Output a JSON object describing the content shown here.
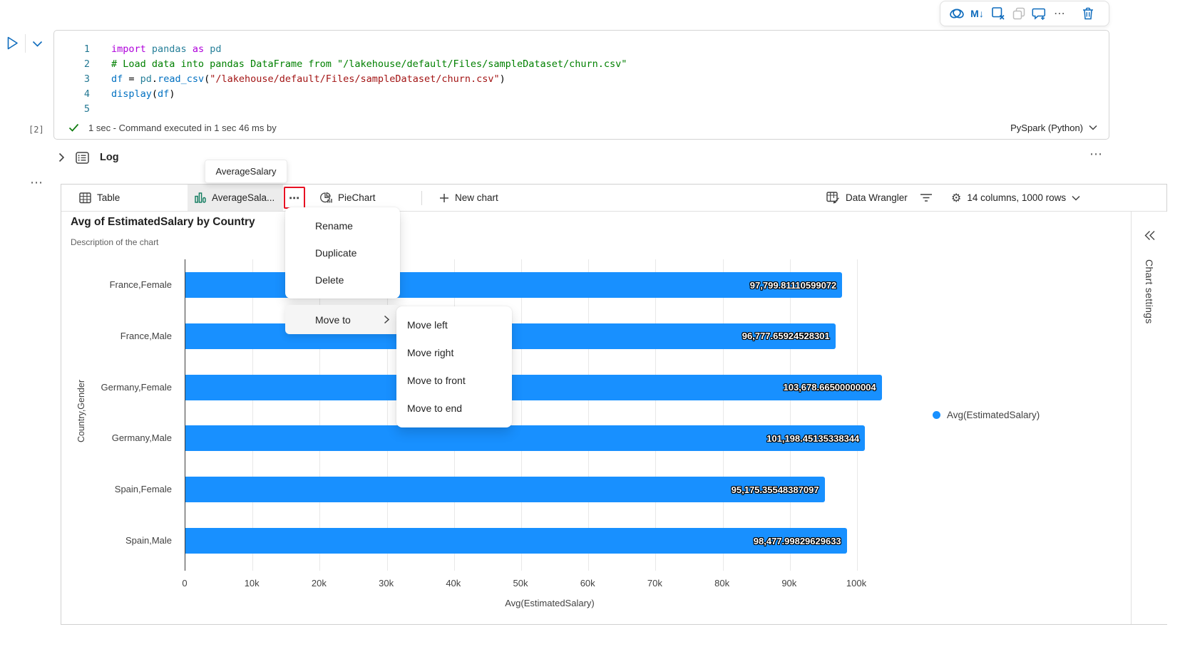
{
  "colors": {
    "accent_blue": "#0f6cbd",
    "bar_blue": "#1890ff",
    "icon_green": "#0e7a5d",
    "highlight_red": "#e81123"
  },
  "toolbar": {
    "markdown_glyph": "M↓",
    "more_glyph": "⋯"
  },
  "cell": {
    "execution_label": "[2]",
    "status_text": "1 sec - Command executed in 1 sec 46 ms by",
    "kernel_label": "PySpark (Python)",
    "lines": [
      {
        "num": "1",
        "tokens": [
          [
            "import",
            "kw"
          ],
          [
            " ",
            "p"
          ],
          [
            "pandas",
            "mod"
          ],
          [
            " ",
            "p"
          ],
          [
            "as",
            "kw"
          ],
          [
            " ",
            "p"
          ],
          [
            "pd",
            "mod"
          ]
        ]
      },
      {
        "num": "2",
        "tokens": [
          [
            "# Load data into pandas DataFrame from \"/lakehouse/default/Files/sampleDataset/churn.csv\"",
            "cmt"
          ]
        ]
      },
      {
        "num": "3",
        "tokens": [
          [
            "df",
            "var"
          ],
          [
            " = ",
            "p"
          ],
          [
            "pd",
            "mod"
          ],
          [
            ".",
            "p"
          ],
          [
            "read_csv",
            "fn"
          ],
          [
            "(",
            "p"
          ],
          [
            "\"/lakehouse/default/Files/sampleDataset/churn.csv\"",
            "str"
          ],
          [
            ")",
            "p"
          ]
        ]
      },
      {
        "num": "4",
        "tokens": [
          [
            "display",
            "fn"
          ],
          [
            "(",
            "p"
          ],
          [
            "df",
            "var"
          ],
          [
            ")",
            "p"
          ]
        ]
      },
      {
        "num": "5",
        "tokens": []
      }
    ]
  },
  "log": {
    "label": "Log",
    "left_more_glyph": "⋯",
    "right_more_glyph": "⋯"
  },
  "tooltip_text": "AverageSalary",
  "tab_bar": {
    "table_label": "Table",
    "average_label": "AverageSala...",
    "ellipsis_glyph": "⋯",
    "pie_label": "PieChart",
    "new_chart_label": "New chart",
    "data_wrangler_label": "Data Wrangler",
    "table_summary": "14 columns, 1000 rows"
  },
  "context_menu": {
    "items": [
      "Rename",
      "Duplicate",
      "Delete"
    ],
    "move_to_label": "Move to",
    "submenu_items": [
      "Move left",
      "Move right",
      "Move to front",
      "Move to end"
    ]
  },
  "chart_settings_label": "Chart settings",
  "chart_data": {
    "type": "bar",
    "orientation": "horizontal",
    "title": "Avg of EstimatedSalary by Country",
    "subtitle": "Description of the chart",
    "categories": [
      "France,Female",
      "France,Male",
      "Germany,Female",
      "Germany,Male",
      "Spain,Female",
      "Spain,Male"
    ],
    "values": [
      97799.81110599072,
      96777.65924528301,
      103678.66500000004,
      101198.45135338344,
      95175.35548387097,
      98477.99829629633
    ],
    "value_labels": [
      "97,799.81110599072",
      "96,777.65924528301",
      "103,678.66500000004",
      "101,198.45135338344",
      "95,175.35548387097",
      "98,477.99829629633"
    ],
    "xlabel": "Avg(EstimatedSalary)",
    "ylabel": "Country,Gender",
    "x_ticks": [
      "0",
      "10k",
      "20k",
      "30k",
      "40k",
      "50k",
      "60k",
      "70k",
      "80k",
      "90k",
      "100k"
    ],
    "x_tick_values": [
      0,
      10000,
      20000,
      30000,
      40000,
      50000,
      60000,
      70000,
      80000,
      90000,
      100000
    ],
    "xlim": [
      0,
      100000
    ],
    "grid": true,
    "legend": [
      "Avg(EstimatedSalary)"
    ],
    "legend_position": "right",
    "bar_color": "#1890ff"
  }
}
